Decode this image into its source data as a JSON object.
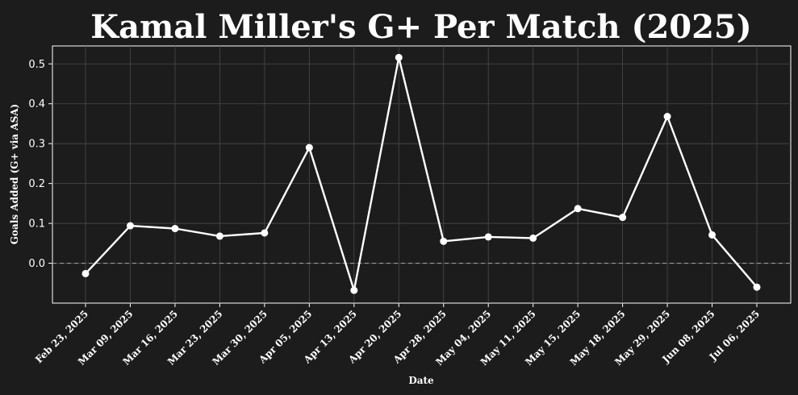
{
  "chart_data": {
    "type": "line",
    "title": "Kamal Miller's G+ Per Match (2025)",
    "xlabel": "Date",
    "ylabel": "Goals Added (G+ via ASA)",
    "categories": [
      "Feb 23, 2025",
      "Mar 09, 2025",
      "Mar 16, 2025",
      "Mar 23, 2025",
      "Mar 30, 2025",
      "Apr 05, 2025",
      "Apr 13, 2025",
      "Apr 20, 2025",
      "Apr 28, 2025",
      "May 04, 2025",
      "May 11, 2025",
      "May 15, 2025",
      "May 18, 2025",
      "May 29, 2025",
      "Jun 08, 2025",
      "Jul 06, 2025"
    ],
    "values": [
      -0.026,
      0.094,
      0.087,
      0.068,
      0.076,
      0.29,
      -0.068,
      0.516,
      0.055,
      0.066,
      0.063,
      0.137,
      0.115,
      0.368,
      0.071,
      -0.06
    ],
    "y_ticks": [
      0.0,
      0.1,
      0.2,
      0.3,
      0.4,
      0.5
    ],
    "y_tick_labels": [
      "0.0",
      "0.1",
      "0.2",
      "0.3",
      "0.4",
      "0.5"
    ],
    "ylim": [
      -0.1,
      0.545
    ],
    "grid": true,
    "zero_line": "dashed",
    "colors": {
      "background": "#1c1c1c",
      "line": "#ffffff",
      "grid": "#4a4a4a",
      "zero_line": "#9a9a9a",
      "text": "#ffffff"
    }
  }
}
